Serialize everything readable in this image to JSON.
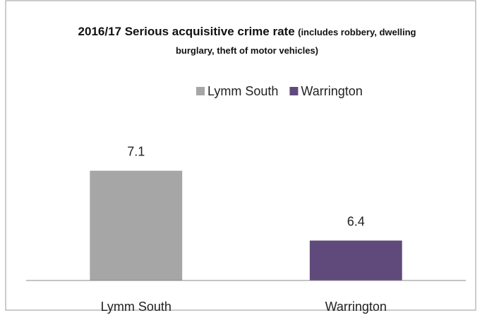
{
  "chart_data": {
    "type": "bar",
    "title": "2016/17 Serious acquisitive crime rate",
    "subtitle": "(includes robbery, dwelling burglary, theft of motor vehicles)",
    "categories": [
      "Lymm South",
      "Warrington"
    ],
    "values": [
      7.1,
      6.4
    ],
    "colors": [
      "#a6a6a6",
      "#604a7b"
    ],
    "ylim": [
      6,
      7.6
    ],
    "legend": "top"
  }
}
